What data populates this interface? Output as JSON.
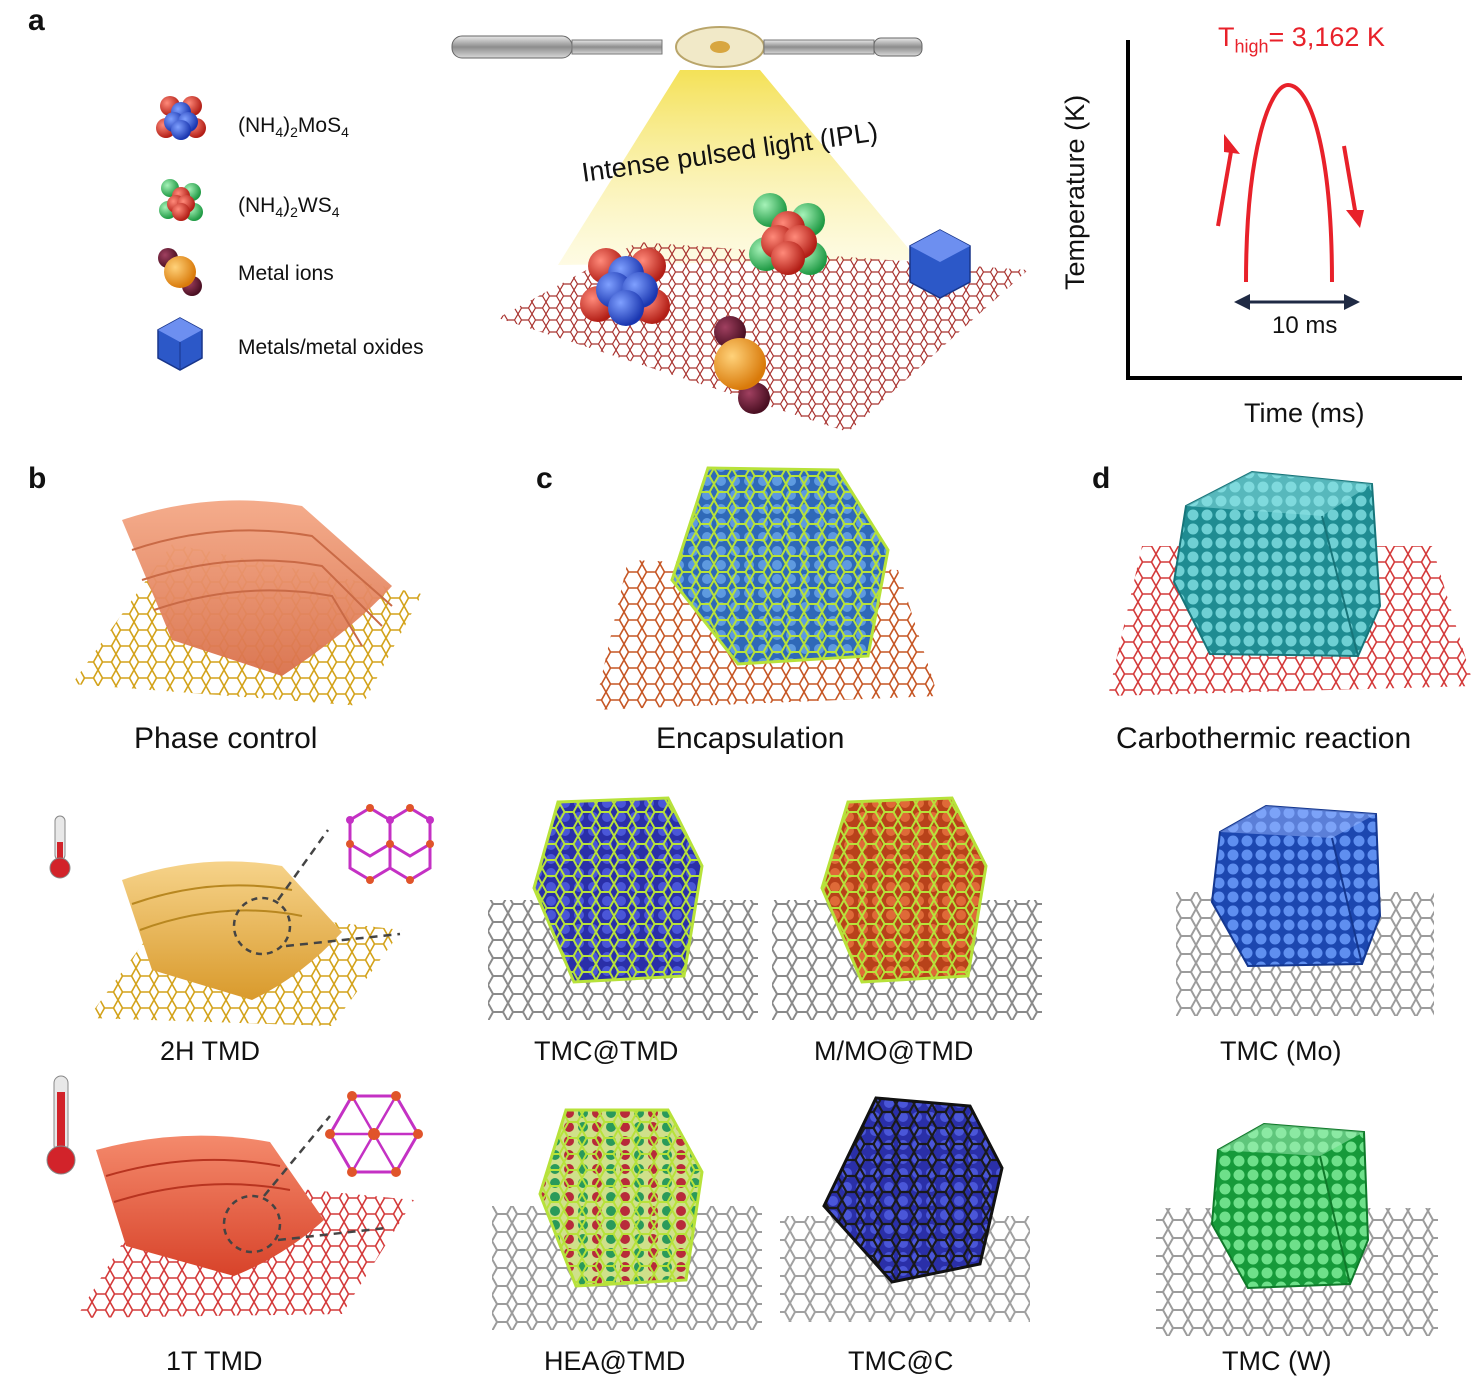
{
  "panels": {
    "a": "a",
    "b": "b",
    "c": "c",
    "d": "d"
  },
  "legend": {
    "items": [
      {
        "label": "(NH4)2MoS4",
        "icon": "mos4-cluster-icon"
      },
      {
        "label": "(NH4)2WS4",
        "icon": "ws4-cluster-icon"
      },
      {
        "label": "Metal ions",
        "icon": "metal-ion-icon"
      },
      {
        "label": "Metals/metal oxides",
        "icon": "metal-oxide-icon"
      }
    ]
  },
  "ipl_label": "Intense pulsed light (IPL)",
  "temperature_plot": {
    "t_high_prefix": "T",
    "t_high_sub": "high",
    "t_high_value": "= 3,162 K",
    "ylabel": "Temperature (K)",
    "xlabel": "Time (ms)",
    "duration_label": "10 ms"
  },
  "captions": {
    "phase_control": "Phase control",
    "encapsulation": "Encapsulation",
    "carbothermic": "Carbothermic reaction",
    "h2_tmd": "2H TMD",
    "t1_tmd": "1T TMD",
    "tmc_at_tmd": "TMC@TMD",
    "mmo_at_tmd": "M/MO@TMD",
    "hea_at_tmd": "HEA@TMD",
    "tmc_at_c": "TMC@C",
    "tmc_mo": "TMC (Mo)",
    "tmc_w": "TMC (W)"
  },
  "colors": {
    "red_accent": "#e8212a",
    "mo_blue": "#2b4fc9",
    "s_red": "#d83a2e",
    "w_green": "#2fbf5a",
    "teal": "#2ea3a8",
    "cage_green": "#b7e23a",
    "navy_arrow": "#1f2a44"
  }
}
